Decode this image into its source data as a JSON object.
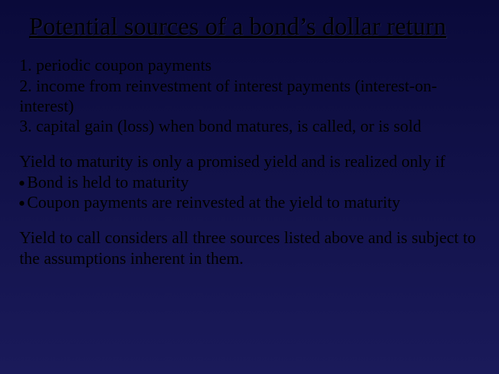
{
  "slide": {
    "background_gradient": [
      "#0a0a3a",
      "#12124a",
      "#1a1a5a"
    ],
    "text_color": "#000000",
    "title": {
      "text": "Potential sources of a bond’s dollar return",
      "fontsize": 36,
      "underline": true,
      "font_family": "Times New Roman"
    },
    "block1": {
      "lines": [
        "1. periodic coupon payments",
        "2. income from reinvestment of interest payments (interest-on-interest)",
        "3. capital gain (loss) when bond matures, is called, or is sold"
      ],
      "fontsize": 24
    },
    "block2": {
      "intro": "Yield to maturity is only a promised yield and is realized only if",
      "bullets": [
        "Bond is held to maturity",
        "Coupon payments are reinvested at the yield to maturity"
      ],
      "fontsize": 24
    },
    "block3": {
      "text": "Yield to call considers all three sources listed above and is subject to the assumptions inherent in them.",
      "fontsize": 24
    }
  }
}
